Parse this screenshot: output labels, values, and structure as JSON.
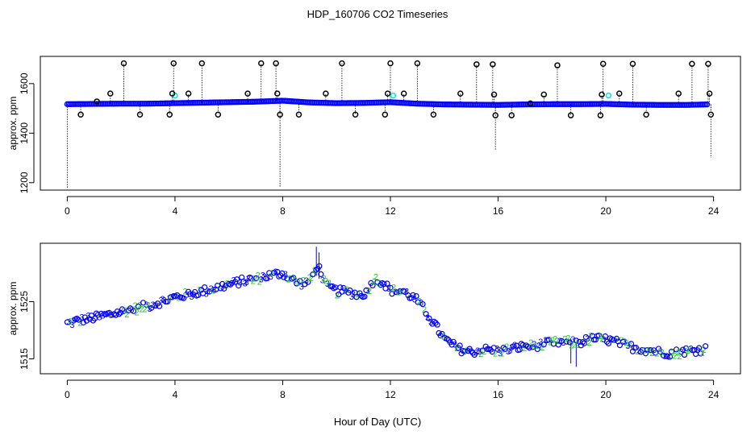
{
  "title": "HDP_160706  CO2 Timeseries",
  "xlabel": "Hour of Day (UTC)",
  "colors": {
    "black": "#000000",
    "blue": "#0000ff",
    "cyan": "#00e5e5",
    "green": "#22cc22"
  },
  "chart_data": [
    {
      "type": "scatter",
      "title": "",
      "ylabel": "approx. ppm",
      "xlim": [
        -1,
        25
      ],
      "ylim": [
        1170,
        1710
      ],
      "xticks": [
        0,
        4,
        8,
        12,
        16,
        20,
        24
      ],
      "yticks": [
        1200,
        1400,
        1600
      ],
      "grid": false,
      "baseline_y": 1515,
      "baseline": {
        "x": [
          0,
          1,
          2,
          3,
          4,
          5,
          6,
          7,
          8,
          9,
          10,
          11,
          12,
          13,
          14,
          15,
          16,
          17,
          18,
          19,
          20,
          21,
          22,
          23,
          23.8
        ],
        "y": [
          1517,
          1518,
          1519,
          1519,
          1521,
          1523,
          1525,
          1527,
          1531,
          1524,
          1521,
          1522,
          1525,
          1519,
          1516,
          1515,
          1514,
          1516,
          1517,
          1517,
          1518,
          1515,
          1514,
          1514,
          1516
        ]
      },
      "outliers": {
        "x": [
          0.5,
          1.1,
          1.6,
          2.1,
          2.7,
          3.8,
          3.9,
          3.95,
          4.5,
          5.0,
          5.6,
          6.7,
          7.2,
          7.75,
          7.8,
          7.9,
          8.6,
          9.6,
          10.2,
          10.7,
          11.8,
          11.9,
          12.0,
          12.5,
          13.0,
          13.6,
          14.6,
          15.2,
          15.8,
          15.85,
          15.9,
          16.5,
          17.2,
          17.7,
          18.2,
          18.7,
          19.8,
          19.85,
          19.9,
          20.5,
          21.0,
          21.5,
          22.7,
          23.2,
          23.8,
          23.85,
          23.9
        ],
        "y": [
          1475,
          1528,
          1560,
          1682,
          1475,
          1475,
          1560,
          1682,
          1560,
          1682,
          1475,
          1560,
          1682,
          1682,
          1560,
          1475,
          1475,
          1560,
          1682,
          1475,
          1475,
          1560,
          1682,
          1560,
          1682,
          1475,
          1560,
          1678,
          1678,
          1556,
          1472,
          1472,
          1520,
          1556,
          1674,
          1472,
          1472,
          1556,
          1680,
          1560,
          1680,
          1475,
          1560,
          1680,
          1680,
          1560,
          1475
        ]
      },
      "cyan_points": {
        "x": [
          4.0,
          12.1,
          20.1
        ],
        "y": [
          1552,
          1552,
          1552
        ]
      },
      "drops": {
        "x": [
          0.0,
          7.9,
          15.9,
          23.9
        ],
        "y": [
          1175,
          1180,
          1330,
          1300
        ]
      }
    },
    {
      "type": "scatter",
      "title": "",
      "ylabel": "approx. ppm",
      "xlim": [
        -1,
        25
      ],
      "ylim": [
        1512.4,
        1535.2
      ],
      "xticks": [
        0,
        4,
        8,
        12,
        16,
        20,
        24
      ],
      "yticks": [
        1515,
        1525
      ],
      "grid": false,
      "markers": [
        "o",
        "2",
        "3"
      ],
      "trend": {
        "x": [
          0,
          0.5,
          1,
          1.5,
          2,
          2.5,
          3,
          3.5,
          4,
          4.5,
          5,
          5.5,
          6,
          6.5,
          7,
          7.5,
          8,
          8.3,
          8.6,
          9.0,
          9.3,
          9.6,
          10.0,
          10.4,
          10.8,
          11.1,
          11.4,
          11.7,
          12.0,
          12.5,
          13.0,
          13.5,
          14.0,
          14.5,
          15.0,
          15.5,
          16.0,
          16.5,
          17.0,
          17.5,
          18.0,
          18.5,
          19.0,
          19.5,
          20.0,
          20.5,
          21.0,
          21.5,
          22.0,
          22.5,
          23.0,
          23.5,
          23.8
        ],
        "y": [
          1521.2,
          1521.8,
          1522.2,
          1522.7,
          1523.2,
          1523.8,
          1524.3,
          1525.0,
          1525.8,
          1526.3,
          1526.8,
          1527.4,
          1528.0,
          1528.6,
          1529.0,
          1529.6,
          1530.0,
          1529.0,
          1528.2,
          1528.6,
          1531.4,
          1528.0,
          1526.8,
          1526.8,
          1526.2,
          1526.5,
          1529.0,
          1528.5,
          1527.0,
          1526.8,
          1525.2,
          1522.0,
          1518.5,
          1516.8,
          1516.2,
          1516.6,
          1516.4,
          1516.8,
          1517.2,
          1517.4,
          1517.8,
          1518.0,
          1517.8,
          1518.6,
          1518.4,
          1517.8,
          1517.0,
          1516.6,
          1516.2,
          1516.0,
          1516.4,
          1516.6,
          1516.8
        ]
      }
    }
  ]
}
